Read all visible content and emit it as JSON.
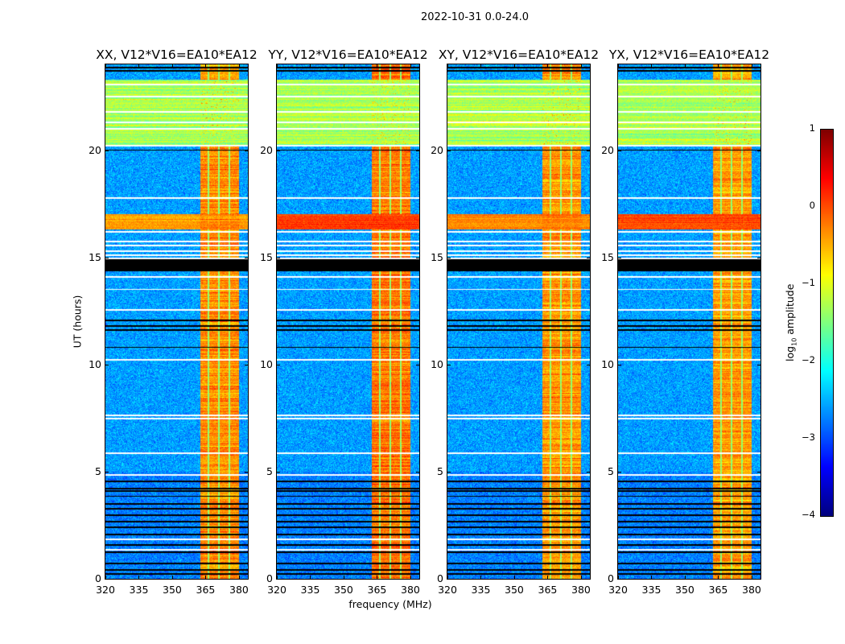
{
  "chart_data": {
    "type": "heatmap",
    "title": "2022-10-31 0.0-24.0",
    "xlabel": "frequency (MHz)",
    "ylabel": "UT (hours)",
    "xlim": [
      320,
      384
    ],
    "ylim": [
      0,
      24
    ],
    "xticks": [
      "320",
      "335",
      "350",
      "365",
      "380"
    ],
    "yticks": [
      "0",
      "5",
      "10",
      "15",
      "20"
    ],
    "colorbar": {
      "label_main": "log",
      "label_sub": "10",
      "label_rest": " amplitude",
      "range": [
        -4,
        1
      ],
      "ticks": [
        "1",
        "0",
        "−1",
        "−2",
        "−3",
        "−4"
      ],
      "colormap": "jet"
    },
    "panels": [
      {
        "title": "XX, V12*V16=EA10*EA12",
        "band_level": -0.4,
        "rfi_level": -0.3
      },
      {
        "title": "YY, V12*V16=EA10*EA12",
        "band_level": 0.1,
        "rfi_level": -0.2
      },
      {
        "title": "XY, V12*V16=EA10*EA12",
        "band_level": -0.3,
        "rfi_level": -0.35
      },
      {
        "title": "YX, V12*V16=EA10*EA12",
        "band_level": 0.05,
        "rfi_level": -0.4
      }
    ],
    "background_level": -2.6,
    "rfi_bands_mhz": [
      [
        362.5,
        366
      ],
      [
        366.6,
        370.6
      ],
      [
        371.2,
        375.4
      ],
      [
        376,
        380
      ]
    ],
    "broadband_interference_hours": [
      16.3,
      17.0
    ],
    "elevated_stripe_hours": [
      20.2,
      23.3
    ],
    "elevated_stripe_level": -1.3,
    "flagged_black_hours": [
      [
        14.35,
        15.0
      ]
    ],
    "flagged_black_lines_hours": [
      23.84,
      23.7,
      20.0,
      12.05,
      11.8,
      11.6,
      10.8,
      4.55,
      4.2,
      4.1,
      3.85,
      3.5,
      3.27,
      2.97,
      2.67,
      2.4,
      2.07,
      1.58,
      1.24,
      0.71,
      0.41,
      0.22
    ],
    "blank_white_lines_hours": [
      23.05,
      22.5,
      21.8,
      21.3,
      21.0,
      20.2,
      17.76,
      16.18,
      15.73,
      15.55,
      15.3,
      15.1,
      14.95,
      14.1,
      13.5,
      12.55,
      10.2,
      7.62,
      7.47,
      5.86,
      4.85,
      1.84,
      1.35
    ]
  }
}
